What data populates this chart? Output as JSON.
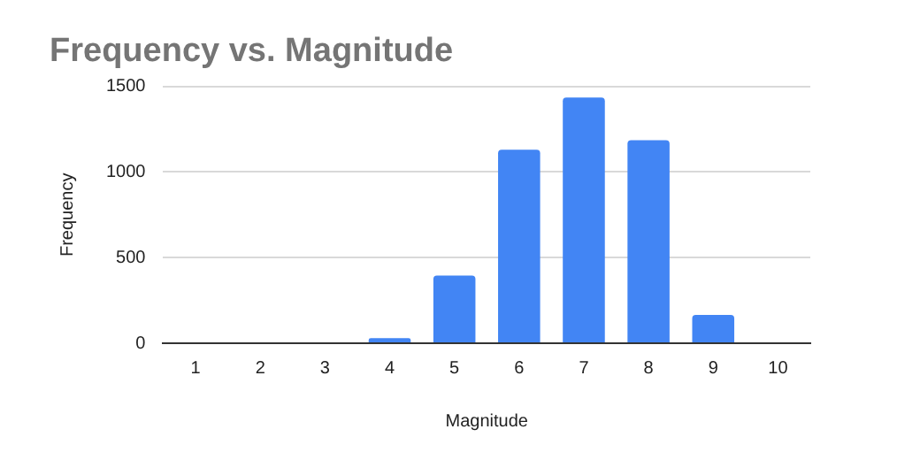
{
  "chart_data": {
    "type": "bar",
    "title": "Frequency vs. Magnitude",
    "xlabel": "Magnitude",
    "ylabel": "Frequency",
    "categories": [
      "1",
      "2",
      "3",
      "4",
      "5",
      "6",
      "7",
      "8",
      "9",
      "10"
    ],
    "values": [
      0,
      0,
      0,
      30,
      395,
      1130,
      1435,
      1185,
      165,
      0
    ],
    "color": "#4285f4",
    "ylim": [
      0,
      1500
    ],
    "yticks": [
      0,
      500,
      1000,
      1500
    ],
    "grid": "y",
    "legend": false
  }
}
